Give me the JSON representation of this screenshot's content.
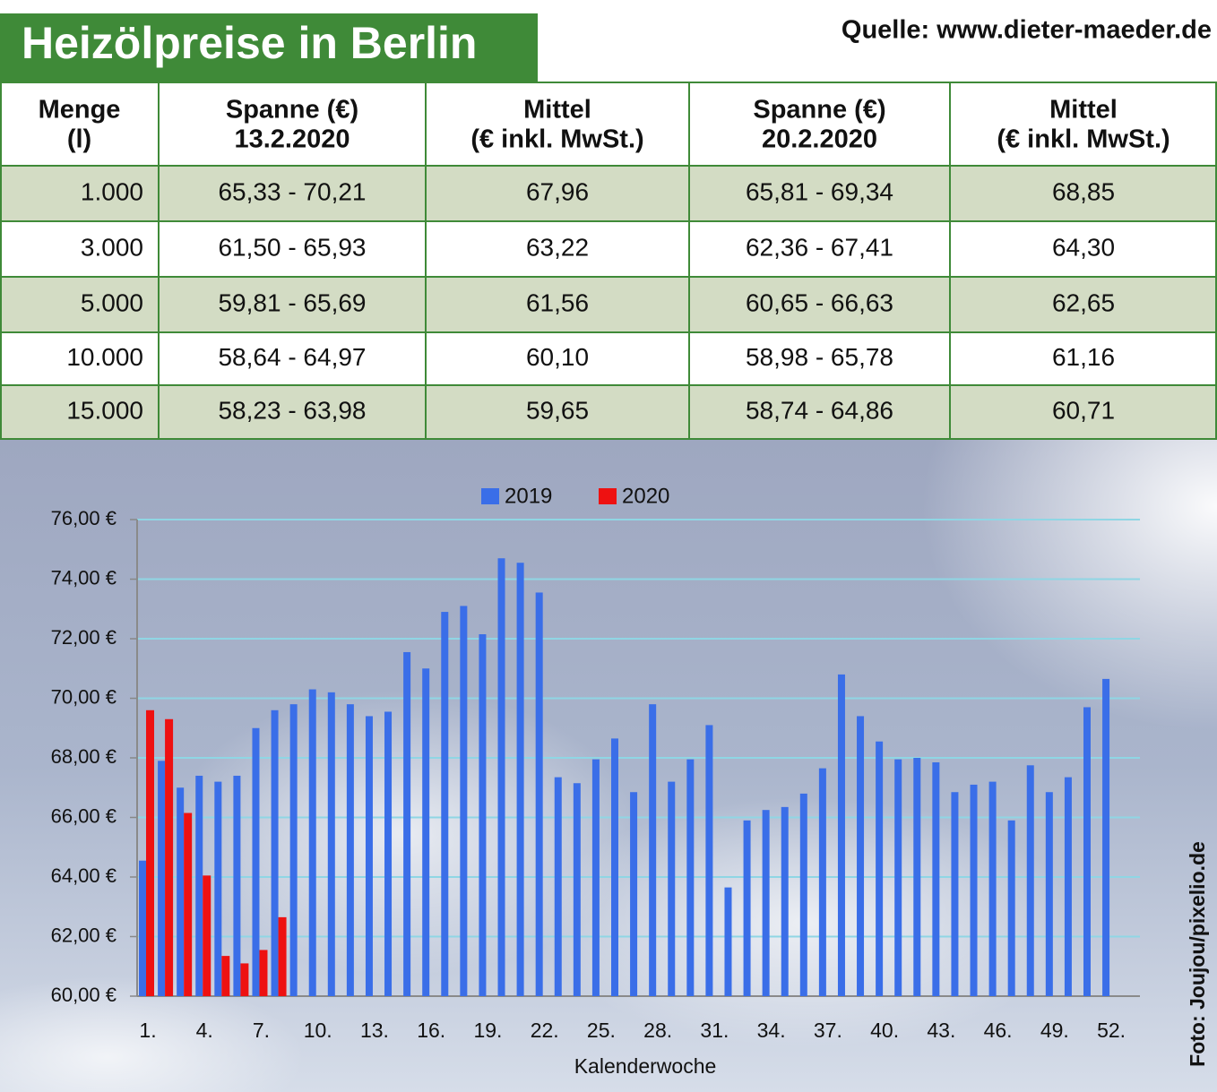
{
  "header": {
    "title": "Heizölpreise in Berlin",
    "source": "Quelle: www.dieter-maeder.de"
  },
  "table": {
    "columns": [
      [
        "Menge",
        "(l)"
      ],
      [
        "Spanne (€)",
        "13.2.2020"
      ],
      [
        "Mittel",
        "(€ inkl. MwSt.)"
      ],
      [
        "Spanne (€)",
        "20.2.2020"
      ],
      [
        "Mittel",
        "(€ inkl. MwSt.)"
      ]
    ],
    "rows": [
      [
        "1.000",
        "65,33 - 70,21",
        "67,96",
        "65,81 - 69,34",
        "68,85"
      ],
      [
        "3.000",
        "61,50 - 65,93",
        "63,22",
        "62,36 - 67,41",
        "64,30"
      ],
      [
        "5.000",
        "59,81 - 65,69",
        "61,56",
        "60,65 - 66,63",
        "62,65"
      ],
      [
        "10.000",
        "58,64 - 64,97",
        "60,10",
        "58,98 - 65,78",
        "61,16"
      ],
      [
        "15.000",
        "58,23 - 63,98",
        "59,65",
        "58,74 - 64,86",
        "60,71"
      ]
    ]
  },
  "chart_data": {
    "type": "bar",
    "x_label": "Kalenderwoche",
    "credit": "Foto: Joujou/pixelio.de",
    "categories": [
      "1.",
      null,
      null,
      "4.",
      null,
      null,
      "7.",
      null,
      null,
      "10.",
      null,
      null,
      "13.",
      null,
      null,
      "16.",
      null,
      null,
      "19.",
      null,
      null,
      "22.",
      null,
      null,
      "25.",
      null,
      null,
      "28.",
      null,
      null,
      "31.",
      null,
      null,
      "34.",
      null,
      null,
      "37.",
      null,
      null,
      "40.",
      null,
      null,
      "43.",
      null,
      null,
      "46.",
      null,
      null,
      "49.",
      null,
      null,
      "52."
    ],
    "series": [
      {
        "name": "2019",
        "color": "#3a6ee8",
        "values": [
          64.55,
          67.9,
          67.0,
          67.4,
          67.2,
          67.4,
          69.0,
          69.6,
          69.8,
          70.3,
          70.2,
          69.8,
          69.4,
          69.55,
          71.55,
          71.0,
          72.9,
          73.1,
          72.15,
          74.7,
          74.55,
          73.55,
          67.35,
          67.15,
          67.95,
          68.65,
          66.85,
          69.8,
          67.2,
          67.95,
          69.1,
          63.65,
          65.9,
          66.25,
          66.35,
          66.8,
          67.65,
          70.8,
          69.4,
          68.55,
          67.95,
          68.0,
          67.85,
          66.85,
          67.1,
          67.2,
          65.9,
          67.75,
          66.85,
          67.35,
          69.7,
          70.65
        ]
      },
      {
        "name": "2020",
        "color": "#ee1111",
        "values": [
          69.6,
          69.3,
          66.15,
          64.05,
          61.35,
          61.1,
          61.55,
          62.65,
          null,
          null,
          null,
          null,
          null,
          null,
          null,
          null,
          null,
          null,
          null,
          null,
          null,
          null,
          null,
          null,
          null,
          null,
          null,
          null,
          null,
          null,
          null,
          null,
          null,
          null,
          null,
          null,
          null,
          null,
          null,
          null,
          null,
          null,
          null,
          null,
          null,
          null,
          null,
          null,
          null,
          null,
          null,
          null
        ]
      }
    ],
    "ylim": [
      60,
      76
    ],
    "yticks": [
      {
        "value": 60,
        "label": "60,00 €"
      },
      {
        "value": 62,
        "label": "62,00 €"
      },
      {
        "value": 64,
        "label": "64,00 €"
      },
      {
        "value": 66,
        "label": "66,00 €"
      },
      {
        "value": 68,
        "label": "68,00 €"
      },
      {
        "value": 70,
        "label": "70,00 €"
      },
      {
        "value": 72,
        "label": "72,00 €"
      },
      {
        "value": 74,
        "label": "74,00 €"
      },
      {
        "value": 76,
        "label": "76,00 €"
      }
    ],
    "grid": true,
    "legend": "top"
  }
}
